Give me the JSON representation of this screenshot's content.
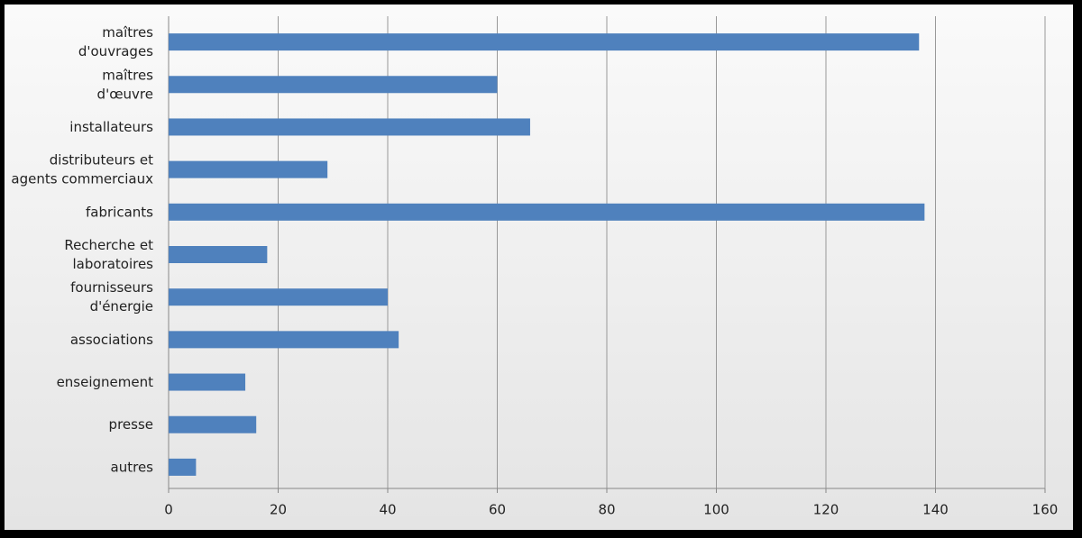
{
  "chart_data": {
    "type": "bar",
    "orientation": "horizontal",
    "categories": [
      [
        "maîtres",
        "d'ouvrages"
      ],
      [
        "maîtres",
        "d'œuvre"
      ],
      [
        "installateurs"
      ],
      [
        "distributeurs et",
        "agents commerciaux"
      ],
      [
        "fabricants"
      ],
      [
        "Recherche et",
        "laboratoires"
      ],
      [
        "fournisseurs",
        "d'énergie"
      ],
      [
        "associations"
      ],
      [
        "enseignement"
      ],
      [
        "presse"
      ],
      [
        "autres"
      ]
    ],
    "values": [
      137,
      60,
      66,
      29,
      138,
      18,
      40,
      42,
      14,
      16,
      5
    ],
    "color": "#4f81bd",
    "xlim": [
      0,
      160
    ],
    "xticks": [
      0,
      20,
      40,
      60,
      80,
      100,
      120,
      140,
      160
    ],
    "grid": true
  }
}
